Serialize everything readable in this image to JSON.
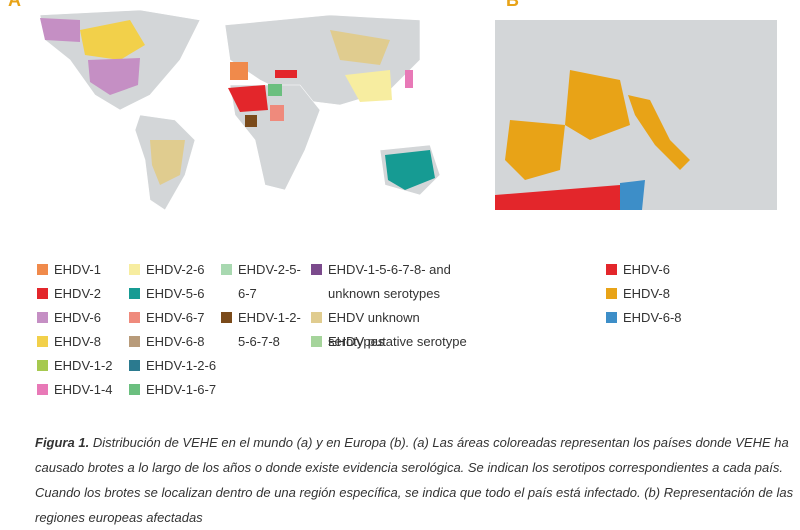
{
  "panels": {
    "a": "A",
    "b": "B"
  },
  "legend_a": [
    {
      "label": "EHDV-1",
      "color": "#f08a4b"
    },
    {
      "label": "EHDV-2",
      "color": "#e3262b"
    },
    {
      "label": "EHDV-6",
      "color": "#c58fc4"
    },
    {
      "label": "EHDV-8",
      "color": "#f2d04a"
    },
    {
      "label": "EHDV-1-2",
      "color": "#a6c94f"
    },
    {
      "label": "EHDV-1-4",
      "color": "#e879b7"
    },
    {
      "label": "EHDV-2-6",
      "color": "#f7eda0"
    },
    {
      "label": "EHDV-5-6",
      "color": "#169b93"
    },
    {
      "label": "EHDV-6-7",
      "color": "#ef8a7c"
    },
    {
      "label": "EHDV-6-8",
      "color": "#b89b7a"
    },
    {
      "label": "EHDV-1-2-6",
      "color": "#2b7a8f"
    },
    {
      "label": "EHDV-1-6-7",
      "color": "#6bbf7f"
    },
    {
      "label": "EHDV-2-5-6-7",
      "color": "#a8d8b0"
    },
    {
      "label": "EHDV-1-2-5-6-7-8",
      "color": "#7a4a1a"
    },
    {
      "label": "EHDV-1-5-6-7-8- and unknown serotypes",
      "color": "#7b4a8c"
    },
    {
      "label": "EHDV unknown serotypes",
      "color": "#e0cc8f"
    },
    {
      "label": "EHDV putative serotype",
      "color": "#a5d49b"
    }
  ],
  "legend_b": [
    {
      "label": "EHDV-6",
      "color": "#e3262b"
    },
    {
      "label": "EHDV-8",
      "color": "#e8a317"
    },
    {
      "label": "EHDV-6-8",
      "color": "#3d8ec8"
    }
  ],
  "caption": {
    "label": "Figura 1.",
    "text": "Distribución de VEHE en el mundo (a) y en Europa (b).  (a) Las áreas coloreadas representan los países donde VEHE ha causado brotes a lo largo de los años o donde existe evidencia serológica. Se indican los serotipos correspondientes a cada país. Cuando los brotes se localizan dentro de una región específica, se indica que todo el país está infectado. (b) Representación de las regiones europeas afectadas"
  }
}
